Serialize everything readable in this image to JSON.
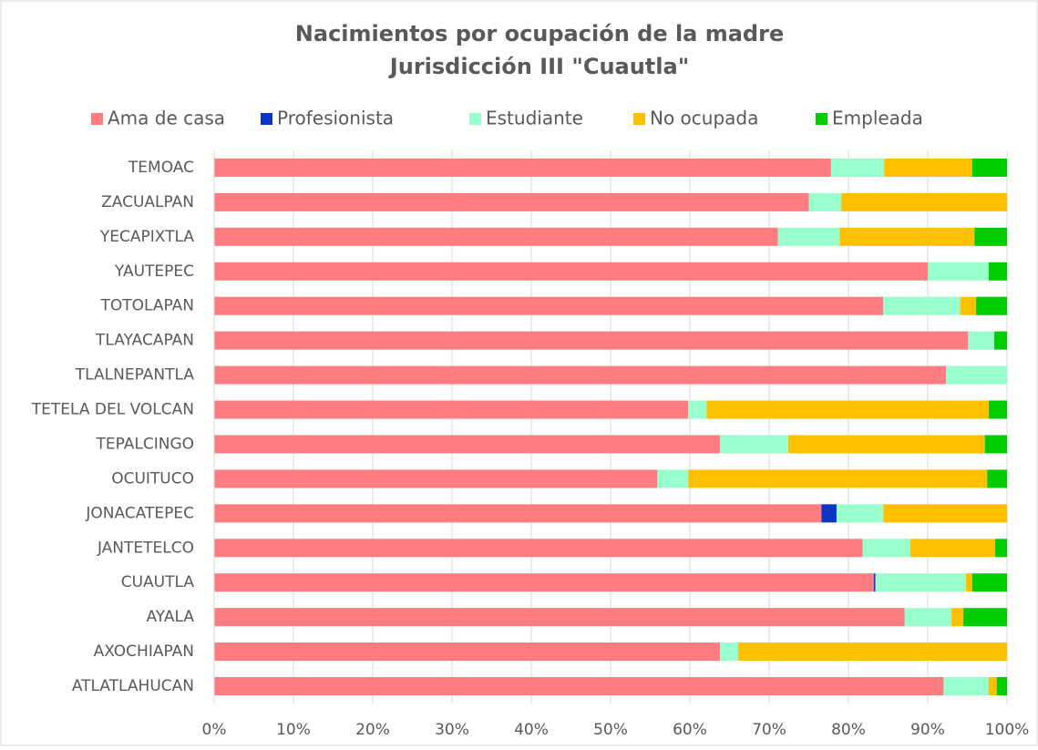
{
  "chart_data": {
    "type": "stacked-bar-horizontal",
    "title": [
      "Nacimientos por ocupación de la madre",
      "Jurisdicción III \"Cuautla\""
    ],
    "categories": [
      "TEMOAC",
      "ZACUALPAN",
      "YECAPIXTLA",
      "YAUTEPEC",
      "TOTOLAPAN",
      "TLAYACAPAN",
      "TLALNEPANTLA",
      "TETELA DEL VOLCAN",
      "TEPALCINGO",
      "OCUITUCO",
      "JONACATEPEC",
      "JANTETELCO",
      "CUAUTLA",
      "AYALA",
      "AXOCHIAPAN",
      "ATLATLAHUCAN"
    ],
    "series": [
      {
        "name": "Ama de casa",
        "color": "#ff7c80",
        "values": [
          77.8,
          75.0,
          71.1,
          90.0,
          84.4,
          95.1,
          92.3,
          59.8,
          63.8,
          55.9,
          76.6,
          81.8,
          83.2,
          87.1,
          63.8,
          92.0
        ]
      },
      {
        "name": "Profesionista",
        "color": "#0b35c4",
        "values": [
          0,
          0,
          0,
          0,
          0,
          0,
          0,
          0,
          0,
          0,
          1.9,
          0,
          0.2,
          0,
          0,
          0
        ]
      },
      {
        "name": "Estudiante",
        "color": "#99ffcc",
        "values": [
          6.7,
          4.1,
          7.8,
          7.7,
          9.7,
          3.3,
          7.7,
          2.3,
          8.6,
          3.9,
          5.9,
          6.0,
          11.4,
          5.9,
          2.3,
          5.7
        ]
      },
      {
        "name": "No ocupada",
        "color": "#ffc000",
        "values": [
          11.1,
          20.9,
          17.0,
          0,
          2.0,
          0,
          0,
          35.6,
          24.8,
          37.7,
          15.6,
          10.7,
          0.8,
          1.5,
          33.9,
          1.0
        ]
      },
      {
        "name": "Empleada",
        "color": "#00cc00",
        "values": [
          4.4,
          0,
          4.1,
          2.3,
          3.9,
          1.6,
          0,
          2.3,
          2.8,
          2.5,
          0,
          1.5,
          4.4,
          5.5,
          0,
          1.3
        ]
      }
    ],
    "xlim": [
      0,
      100
    ],
    "xticks": [
      {
        "value": 0,
        "label": "0%"
      },
      {
        "value": 10,
        "label": "10%"
      },
      {
        "value": 20,
        "label": "20%"
      },
      {
        "value": 30,
        "label": "30%"
      },
      {
        "value": 40,
        "label": "40%"
      },
      {
        "value": 50,
        "label": "50%"
      },
      {
        "value": 60,
        "label": "60%"
      },
      {
        "value": 70,
        "label": "70%"
      },
      {
        "value": 80,
        "label": "80%"
      },
      {
        "value": 90,
        "label": "90%"
      },
      {
        "value": 100,
        "label": "100%"
      }
    ],
    "grid": true,
    "legend": "top"
  }
}
